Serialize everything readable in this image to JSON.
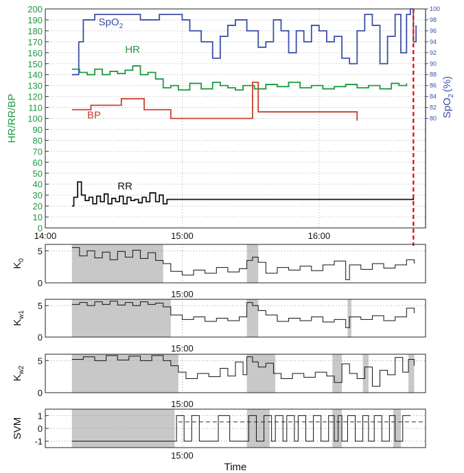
{
  "colors": {
    "hr": "#1a9a3f",
    "spo2": "#3a4fa8",
    "bp": "#c8402a",
    "rr": "#111111",
    "event": "#e02020",
    "shade": "#c8c8c8"
  },
  "chart_data": [
    {
      "type": "line",
      "panel": "vitals",
      "ylabel": "HR/RR/BP",
      "y2label": "SpO2 (%)",
      "ylim": [
        0,
        200
      ],
      "yticks": [
        0,
        10,
        20,
        30,
        40,
        50,
        60,
        70,
        80,
        90,
        100,
        110,
        120,
        130,
        140,
        150,
        160,
        170,
        180,
        190,
        200
      ],
      "y2lim": [
        60,
        100
      ],
      "y2ticks": [
        80,
        82,
        84,
        86,
        88,
        90,
        92,
        94,
        96,
        98,
        100
      ],
      "xlim": [
        0,
        1
      ],
      "xticks": [
        {
          "x": 0.0,
          "label": "14:00"
        },
        {
          "x": 0.36,
          "label": "15:00"
        },
        {
          "x": 0.72,
          "label": "16:00"
        }
      ],
      "event_x": 0.968,
      "series": [
        {
          "name": "SpO2",
          "axis": "right",
          "color": "#3a4fa8",
          "label": "SpO",
          "label_sub": "2",
          "label_pos": [
            0.14,
            97
          ],
          "x": [
            0.07,
            0.082,
            0.088,
            0.1,
            0.13,
            0.2,
            0.25,
            0.3,
            0.36,
            0.38,
            0.41,
            0.44,
            0.46,
            0.48,
            0.5,
            0.53,
            0.56,
            0.58,
            0.6,
            0.62,
            0.64,
            0.66,
            0.68,
            0.7,
            0.72,
            0.74,
            0.76,
            0.78,
            0.8,
            0.82,
            0.84,
            0.86,
            0.88,
            0.9,
            0.92,
            0.935,
            0.95,
            0.96,
            0.968,
            0.975
          ],
          "y": [
            88,
            88,
            94,
            98,
            99,
            99,
            98,
            99,
            98,
            96,
            94,
            91,
            95,
            97,
            98,
            96,
            93,
            94,
            98,
            96,
            92,
            96,
            94,
            97,
            96,
            94,
            95,
            91,
            90,
            96,
            99,
            97,
            90,
            95,
            99,
            92,
            99,
            100,
            94,
            97
          ]
        },
        {
          "name": "HR",
          "axis": "left",
          "color": "#1a9a3f",
          "label": "HR",
          "label_pos": [
            0.21,
            160
          ],
          "x": [
            0.07,
            0.09,
            0.11,
            0.13,
            0.15,
            0.17,
            0.19,
            0.21,
            0.23,
            0.25,
            0.27,
            0.29,
            0.31,
            0.33,
            0.35,
            0.38,
            0.41,
            0.44,
            0.46,
            0.48,
            0.5,
            0.52,
            0.55,
            0.58,
            0.61,
            0.64,
            0.67,
            0.7,
            0.73,
            0.76,
            0.79,
            0.82,
            0.85,
            0.88,
            0.91,
            0.93,
            0.95
          ],
          "y": [
            145,
            142,
            140,
            145,
            140,
            143,
            141,
            144,
            148,
            140,
            142,
            136,
            128,
            130,
            126,
            132,
            127,
            133,
            130,
            128,
            126,
            130,
            127,
            131,
            129,
            133,
            128,
            130,
            127,
            129,
            131,
            128,
            130,
            127,
            132,
            130,
            132
          ]
        },
        {
          "name": "BP",
          "axis": "left",
          "color": "#c8402a",
          "label": "BP",
          "label_pos": [
            0.11,
            100
          ],
          "step": true,
          "x": [
            0.07,
            0.12,
            0.2,
            0.26,
            0.33,
            0.5,
            0.545,
            0.56,
            0.82
          ],
          "y": [
            108,
            112,
            118,
            108,
            100,
            100,
            133,
            106,
            98
          ]
        },
        {
          "name": "RR",
          "axis": "left",
          "color": "#111111",
          "label": "RR",
          "label_pos": [
            0.19,
            35
          ],
          "x": [
            0.07,
            0.075,
            0.085,
            0.095,
            0.105,
            0.115,
            0.125,
            0.135,
            0.145,
            0.155,
            0.165,
            0.175,
            0.185,
            0.195,
            0.205,
            0.215,
            0.225,
            0.235,
            0.245,
            0.255,
            0.265,
            0.275,
            0.29,
            0.3,
            0.31,
            0.32,
            0.96,
            0.968
          ],
          "y": [
            20,
            28,
            42,
            30,
            25,
            28,
            22,
            29,
            24,
            31,
            22,
            27,
            24,
            29,
            22,
            28,
            25,
            26,
            23,
            28,
            24,
            32,
            24,
            30,
            22,
            26,
            26,
            30
          ]
        }
      ]
    },
    {
      "type": "line",
      "panel": "k0",
      "ylabel": "K",
      "ylabel_sub": "0",
      "ylim": [
        0,
        6
      ],
      "yticks": [
        0,
        5
      ],
      "xticks": [
        {
          "x": 0.36,
          "label": "15:00"
        }
      ],
      "shaded": [
        [
          0.07,
          0.31
        ],
        [
          0.53,
          0.56
        ]
      ],
      "x": [
        0.07,
        0.09,
        0.11,
        0.13,
        0.15,
        0.17,
        0.19,
        0.21,
        0.23,
        0.25,
        0.27,
        0.29,
        0.31,
        0.33,
        0.36,
        0.39,
        0.42,
        0.45,
        0.48,
        0.51,
        0.53,
        0.545,
        0.56,
        0.58,
        0.61,
        0.64,
        0.67,
        0.7,
        0.73,
        0.76,
        0.79,
        0.8,
        0.83,
        0.86,
        0.89,
        0.92,
        0.95,
        0.97
      ],
      "y": [
        5.5,
        4.2,
        5.0,
        3.9,
        4.8,
        3.6,
        4.9,
        4.0,
        5.1,
        3.8,
        4.7,
        3.5,
        3.0,
        1.8,
        1.2,
        2.0,
        1.5,
        2.4,
        1.7,
        2.2,
        3.5,
        4.0,
        3.2,
        1.5,
        2.4,
        2.0,
        2.6,
        1.9,
        2.8,
        3.4,
        0.5,
        2.8,
        2.1,
        3.0,
        2.3,
        2.8,
        3.6,
        3.0
      ]
    },
    {
      "type": "line",
      "panel": "kw1",
      "ylabel": "K",
      "ylabel_sub": "w1",
      "ylim": [
        0,
        6
      ],
      "yticks": [
        0,
        5
      ],
      "xticks": [
        {
          "x": 0.36,
          "label": "15:00"
        }
      ],
      "shaded": [
        [
          0.07,
          0.33
        ],
        [
          0.53,
          0.56
        ],
        [
          0.795,
          0.805
        ]
      ],
      "x": [
        0.07,
        0.09,
        0.11,
        0.13,
        0.15,
        0.17,
        0.19,
        0.21,
        0.23,
        0.25,
        0.27,
        0.29,
        0.31,
        0.33,
        0.36,
        0.39,
        0.42,
        0.45,
        0.48,
        0.51,
        0.53,
        0.545,
        0.56,
        0.58,
        0.61,
        0.64,
        0.67,
        0.7,
        0.73,
        0.76,
        0.79,
        0.8,
        0.83,
        0.86,
        0.89,
        0.92,
        0.95,
        0.97
      ],
      "y": [
        5.2,
        5.5,
        5.0,
        5.6,
        5.2,
        5.7,
        5.1,
        5.5,
        5.0,
        5.6,
        5.2,
        5.4,
        4.8,
        3.5,
        2.8,
        3.2,
        2.5,
        3.0,
        2.6,
        3.2,
        5.5,
        5.0,
        4.2,
        3.5,
        2.5,
        3.0,
        2.6,
        3.2,
        2.4,
        2.8,
        1.5,
        3.2,
        2.8,
        3.4,
        2.6,
        3.2,
        4.6,
        3.8
      ]
    },
    {
      "type": "line",
      "panel": "kw2",
      "ylabel": "K",
      "ylabel_sub": "w2",
      "ylim": [
        0,
        6
      ],
      "yticks": [
        0,
        5
      ],
      "xticks": [
        {
          "x": 0.36,
          "label": "15:00"
        }
      ],
      "shaded": [
        [
          0.07,
          0.35
        ],
        [
          0.53,
          0.605
        ],
        [
          0.755,
          0.78
        ],
        [
          0.835,
          0.85
        ],
        [
          0.955,
          0.97
        ]
      ],
      "x": [
        0.07,
        0.1,
        0.13,
        0.16,
        0.19,
        0.22,
        0.25,
        0.28,
        0.31,
        0.33,
        0.35,
        0.37,
        0.4,
        0.43,
        0.46,
        0.48,
        0.5,
        0.52,
        0.53,
        0.545,
        0.56,
        0.58,
        0.6,
        0.62,
        0.65,
        0.68,
        0.71,
        0.74,
        0.76,
        0.78,
        0.8,
        0.82,
        0.84,
        0.86,
        0.88,
        0.9,
        0.92,
        0.94,
        0.955,
        0.97
      ],
      "y": [
        5.2,
        5.6,
        5.0,
        5.8,
        5.1,
        5.7,
        5.0,
        5.8,
        5.0,
        4.2,
        3.2,
        2.2,
        3.0,
        2.5,
        3.8,
        2.6,
        4.8,
        2.8,
        5.6,
        4.8,
        4.0,
        4.6,
        3.0,
        2.2,
        3.0,
        2.4,
        3.2,
        2.6,
        1.6,
        4.5,
        3.0,
        2.2,
        4.0,
        1.0,
        3.5,
        2.8,
        5.5,
        3.2,
        5.2,
        4.2
      ]
    },
    {
      "type": "line",
      "panel": "svm",
      "ylabel": "SVM",
      "ylim": [
        -1.5,
        1.5
      ],
      "yticks": [
        -1,
        0,
        1
      ],
      "xticks": [
        {
          "x": 0.36,
          "label": "15:00"
        }
      ],
      "xlabel": "Time",
      "shaded": [
        [
          0.07,
          0.34
        ],
        [
          0.53,
          0.59
        ],
        [
          0.755,
          0.78
        ],
        [
          0.915,
          0.935
        ]
      ],
      "dashed_level": 0.5,
      "x": [
        0.07,
        0.34,
        0.345,
        0.36,
        0.365,
        0.38,
        0.385,
        0.4,
        0.405,
        0.45,
        0.455,
        0.48,
        0.485,
        0.53,
        0.535,
        0.55,
        0.555,
        0.57,
        0.575,
        0.59,
        0.595,
        0.6,
        0.605,
        0.62,
        0.625,
        0.63,
        0.635,
        0.65,
        0.655,
        0.66,
        0.665,
        0.68,
        0.685,
        0.7,
        0.705,
        0.72,
        0.725,
        0.74,
        0.745,
        0.755,
        0.76,
        0.765,
        0.77,
        0.775,
        0.78,
        0.79,
        0.795,
        0.81,
        0.815,
        0.83,
        0.835,
        0.845,
        0.85,
        0.86,
        0.865,
        0.88,
        0.885,
        0.9,
        0.905,
        0.915,
        0.92,
        0.935,
        0.94,
        0.96
      ],
      "y": [
        -1,
        -1,
        1,
        1,
        -1,
        -1,
        1,
        1,
        -1,
        -1,
        1,
        1,
        -1,
        -1,
        1,
        1,
        -1,
        -1,
        1,
        1,
        -1,
        -1,
        1,
        1,
        -1,
        -1,
        1,
        1,
        -1,
        -1,
        1,
        1,
        -1,
        -1,
        1,
        1,
        -1,
        -1,
        1,
        1,
        -1,
        -1,
        1,
        1,
        -1,
        -1,
        1,
        1,
        -1,
        -1,
        1,
        1,
        -1,
        -1,
        1,
        1,
        -1,
        -1,
        1,
        1,
        -1,
        -1,
        1,
        1
      ]
    }
  ]
}
